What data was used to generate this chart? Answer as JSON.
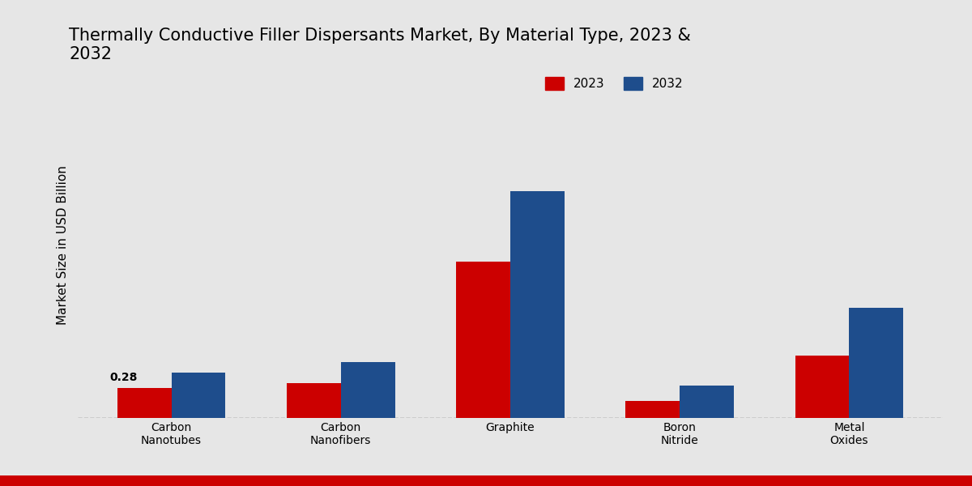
{
  "title": "Thermally Conductive Filler Dispersants Market, By Material Type, 2023 &\n2032",
  "ylabel": "Market Size in USD Billion",
  "categories": [
    "Carbon\nNanotubes",
    "Carbon\nNanofibers",
    "Graphite",
    "Boron\nNitride",
    "Metal\nOxides"
  ],
  "values_2023": [
    0.28,
    0.32,
    1.45,
    0.16,
    0.58
  ],
  "values_2032": [
    0.42,
    0.52,
    2.1,
    0.3,
    1.02
  ],
  "color_2023": "#cc0000",
  "color_2032": "#1e4d8c",
  "annotation_text": "0.28",
  "annotation_category_idx": 0,
  "background_color": "#e6e6e6",
  "legend_labels": [
    "2023",
    "2032"
  ],
  "bar_width": 0.32,
  "ylim": [
    0,
    3.2
  ],
  "title_fontsize": 15,
  "axis_label_fontsize": 11,
  "tick_fontsize": 10,
  "legend_fontsize": 11
}
